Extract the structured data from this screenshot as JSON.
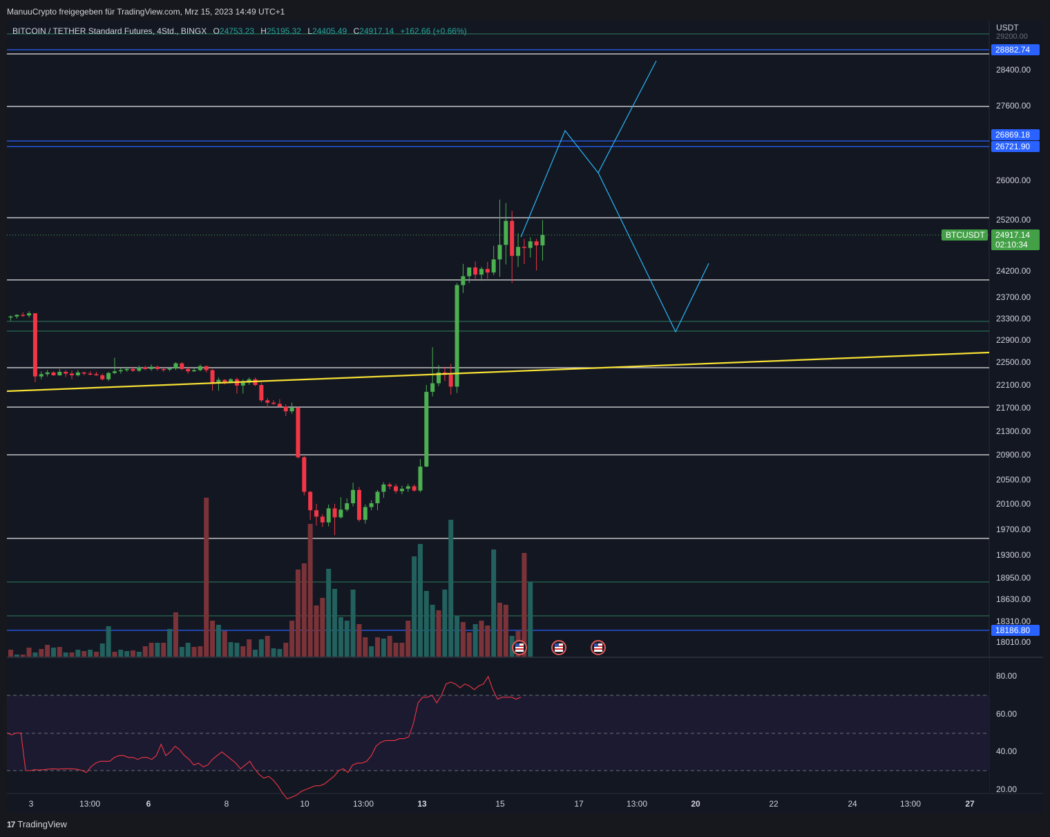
{
  "header": {
    "publisher_line": "ManuuCrypto freigegeben für TradingView.com, Mrz 15, 2023 14:49 UTC+1"
  },
  "legend": {
    "symbol": "BITCOIN / TETHER Standard Futures, 4Std., BINGX",
    "open_label": "O",
    "open": "24753.23",
    "high_label": "H",
    "high": "25195.32",
    "low_label": "L",
    "low": "24405.49",
    "close_label": "C",
    "close": "24917.14",
    "change": "+162.66 (+0.66%)"
  },
  "price_axis": {
    "currency": "USDT",
    "ticks": [
      "28400.00",
      "27600.00",
      "26000.00",
      "25200.00",
      "24200.00",
      "23700.00",
      "23300.00",
      "22900.00",
      "22500.00",
      "22100.00",
      "21700.00",
      "21300.00",
      "20900.00",
      "20500.00",
      "20100.00",
      "19700.00",
      "19300.00",
      "18950.00",
      "18630.00",
      "18310.00",
      "18010.00"
    ],
    "tag_top_cut": "29200.00",
    "blue_tags": [
      "28882.74",
      "26869.18",
      "26721.90",
      "18186.80"
    ],
    "symbol_tag": "BTCUSDT",
    "current_price": "24917.14",
    "countdown": "02:10:34"
  },
  "rsi_axis": {
    "ticks": [
      "80.00",
      "60.00",
      "40.00",
      "20.00"
    ]
  },
  "time_axis": {
    "labels": [
      {
        "text": "3",
        "bold": false
      },
      {
        "text": "13:00",
        "bold": false
      },
      {
        "text": "6",
        "bold": true
      },
      {
        "text": "8",
        "bold": false
      },
      {
        "text": "10",
        "bold": false
      },
      {
        "text": "13:00",
        "bold": false
      },
      {
        "text": "13",
        "bold": true
      },
      {
        "text": "15",
        "bold": false
      },
      {
        "text": "17",
        "bold": false
      },
      {
        "text": "13:00",
        "bold": false
      },
      {
        "text": "20",
        "bold": true
      },
      {
        "text": "22",
        "bold": false
      },
      {
        "text": "24",
        "bold": false
      },
      {
        "text": "13:00",
        "bold": false
      },
      {
        "text": "27",
        "bold": true
      }
    ]
  },
  "colors": {
    "up": "#4caf50",
    "down": "#f23645",
    "vol_up": "#22615d",
    "vol_down": "#7a3338",
    "trend": "#f7e034",
    "projection": "#29b6f6",
    "blue_line": "#2962ff",
    "green_line": "#2e7d5b",
    "rsi": "#f23645"
  },
  "events": [
    {
      "icon": "us-flag-event-icon"
    },
    {
      "icon": "us-flag-event-icon"
    },
    {
      "icon": "us-flag-event-icon"
    }
  ],
  "branding": {
    "logo_text": "TradingView"
  }
}
